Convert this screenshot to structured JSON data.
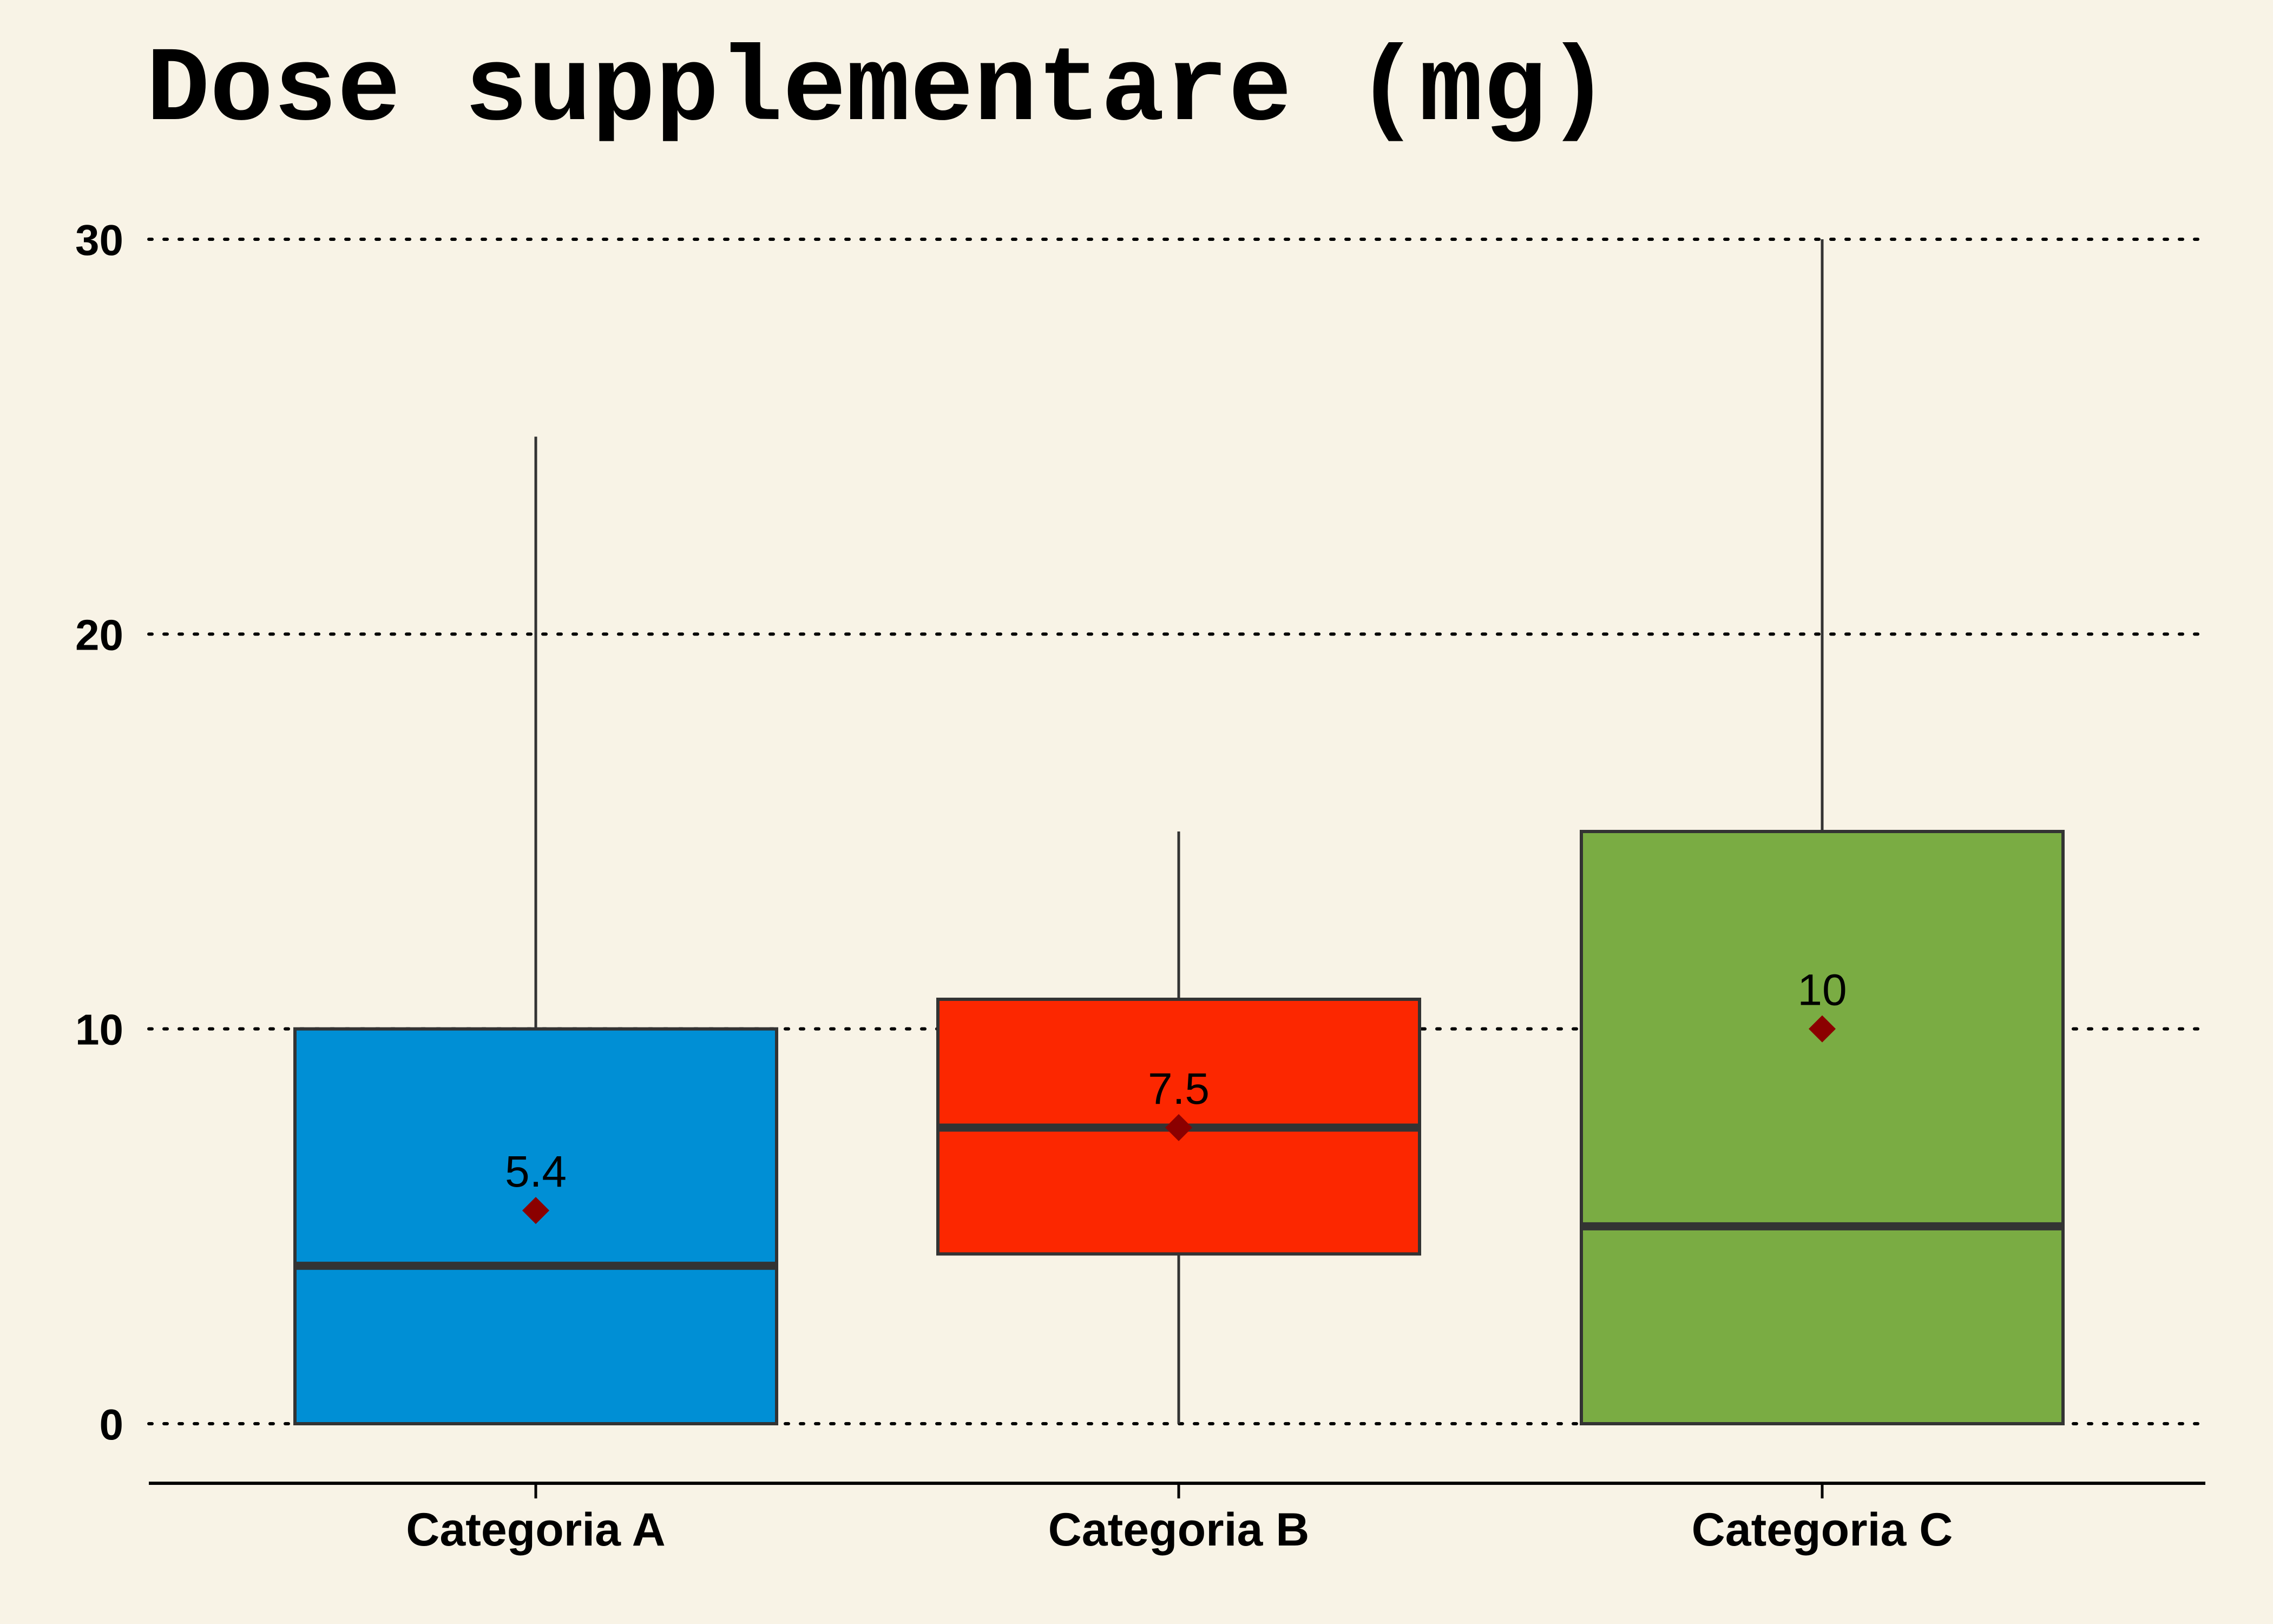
{
  "chart_data": {
    "type": "box",
    "title": "Dose supplementare (mg)",
    "xlabel": "",
    "ylabel": "",
    "ylim": [
      -1.5,
      31.5
    ],
    "yticks": [
      0,
      10,
      20,
      30
    ],
    "grid": "horizontal dotted",
    "categories": [
      "Categoria A",
      "Categoria B",
      "Categoria C"
    ],
    "boxes": [
      {
        "category": "Categoria A",
        "min": 0,
        "q1": 0,
        "median": 4,
        "q3": 10,
        "max": 25,
        "mean": 5.4,
        "mean_label": "5.4",
        "color": "#008fd5"
      },
      {
        "category": "Categoria B",
        "min": 0,
        "q1": 4.3,
        "median": 7.5,
        "q3": 10.75,
        "max": 15,
        "mean": 7.5,
        "mean_label": "7.5",
        "color": "#fc2700"
      },
      {
        "category": "Categoria C",
        "min": 0,
        "q1": 0,
        "median": 5,
        "q3": 15,
        "max": 30,
        "mean": 10,
        "mean_label": "10",
        "color": "#7aac43"
      }
    ],
    "mean_marker_color": "#8b0000",
    "box_edge_color": "#333333",
    "background_color": "#f8f3e6"
  }
}
